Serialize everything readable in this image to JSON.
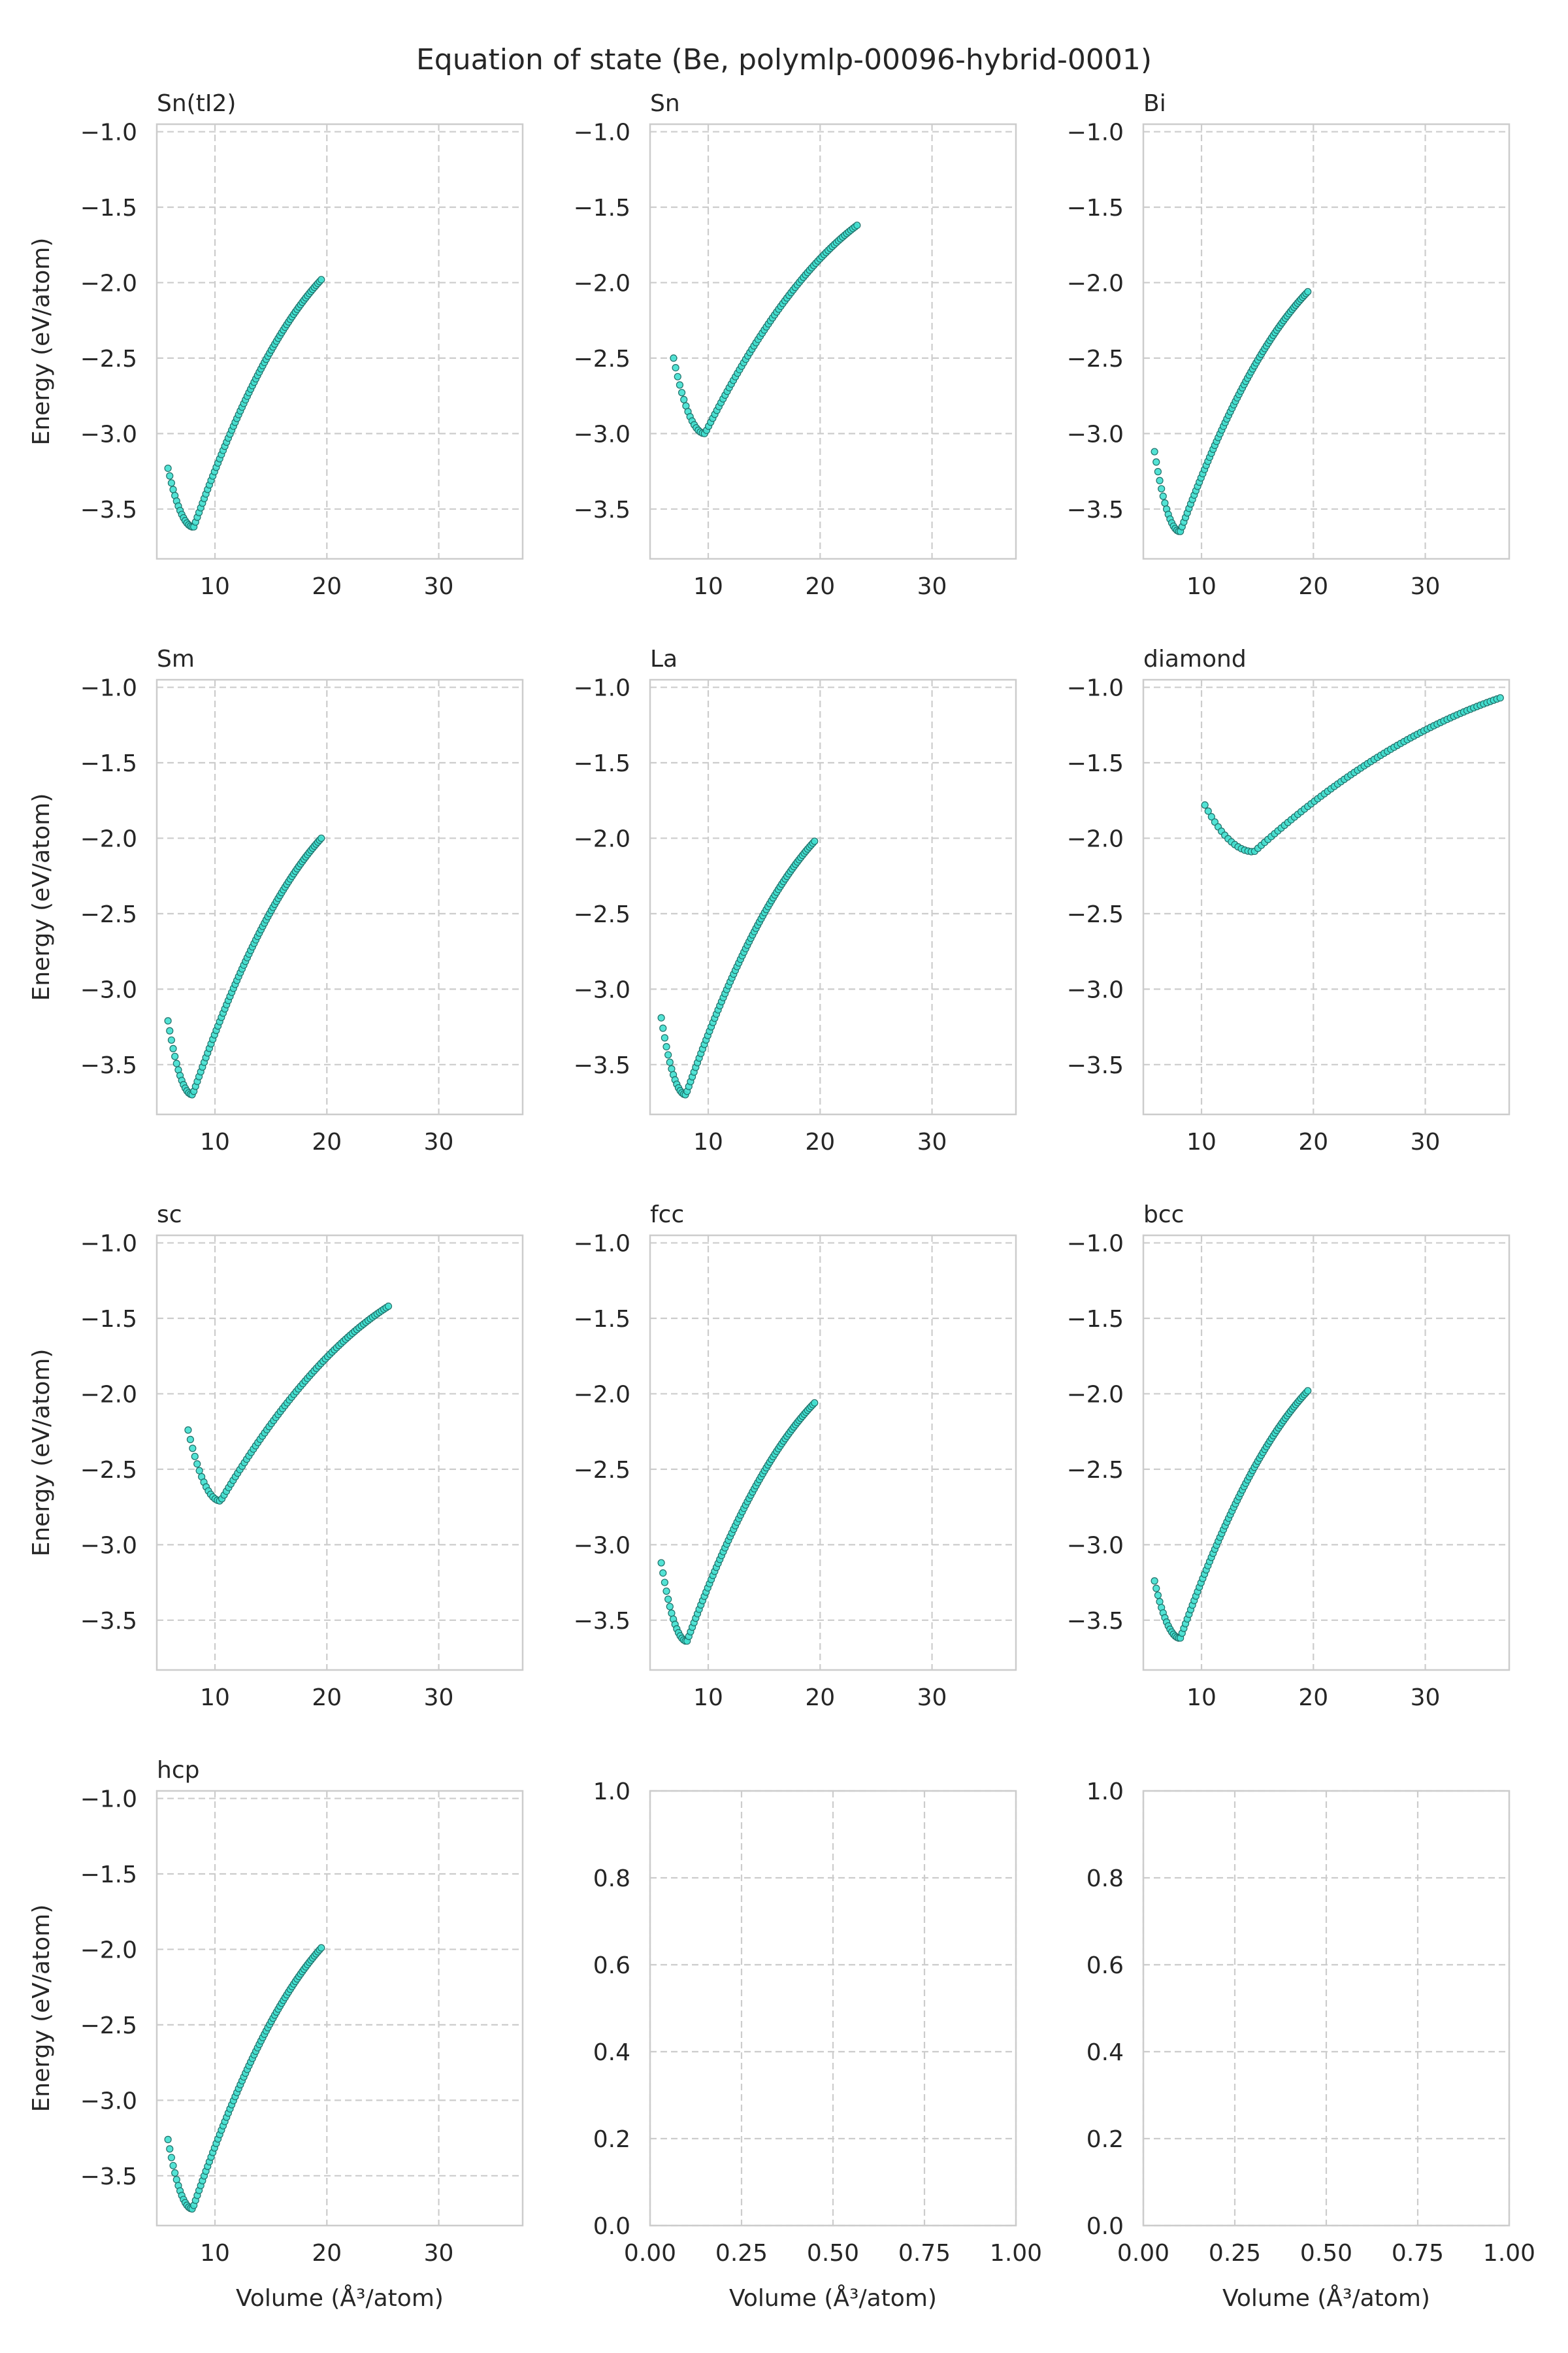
{
  "figure": {
    "title": "Equation of state (Be, polymlp-00096-hybrid-0001)",
    "ylabel": "Energy (eV/atom)",
    "xlabel": "Volume (Å³/atom)"
  },
  "colors": {
    "marker_fill": "#40E0D0",
    "marker_edge": "#1f6f68",
    "grid": "#cccccc",
    "frame": "#cccccc",
    "text": "#262626"
  },
  "chart_data": [
    {
      "type": "scatter",
      "title": "Sn(tI2)",
      "xlim": [
        4.8,
        37.5
      ],
      "ylim": [
        -3.83,
        -0.95
      ],
      "xticks": [
        "10",
        "20",
        "30"
      ],
      "xtick_values": [
        10,
        20,
        30
      ],
      "yticks": [
        "−1.0",
        "−1.5",
        "−2.0",
        "−2.5",
        "−3.0",
        "−3.5"
      ],
      "ytick_values": [
        -1.0,
        -1.5,
        -2.0,
        -2.5,
        -3.0,
        -3.5
      ],
      "ylabel": "Energy (eV/atom)",
      "xlabel": "",
      "grid": true,
      "curve": {
        "x_start": 5.8,
        "x_end": 19.5,
        "x_min": 8.1,
        "e_min": -3.62,
        "e_left": -3.23,
        "e_right": -1.98,
        "n": 90
      }
    },
    {
      "type": "scatter",
      "title": "Sn",
      "xlim": [
        4.8,
        37.5
      ],
      "ylim": [
        -3.83,
        -0.95
      ],
      "xticks": [
        "10",
        "20",
        "30"
      ],
      "xtick_values": [
        10,
        20,
        30
      ],
      "yticks": [
        "−1.0",
        "−1.5",
        "−2.0",
        "−2.5",
        "−3.0",
        "−3.5"
      ],
      "ytick_values": [
        -1.0,
        -1.5,
        -2.0,
        -2.5,
        -3.0,
        -3.5
      ],
      "ylabel": "",
      "xlabel": "",
      "grid": true,
      "curve": {
        "x_start": 6.9,
        "x_end": 23.3,
        "x_min": 9.7,
        "e_min": -3.0,
        "e_left": -2.5,
        "e_right": -1.62,
        "n": 90
      }
    },
    {
      "type": "scatter",
      "title": "Bi",
      "xlim": [
        4.8,
        37.5
      ],
      "ylim": [
        -3.83,
        -0.95
      ],
      "xticks": [
        "10",
        "20",
        "30"
      ],
      "xtick_values": [
        10,
        20,
        30
      ],
      "yticks": [
        "−1.0",
        "−1.5",
        "−2.0",
        "−2.5",
        "−3.0",
        "−3.5"
      ],
      "ytick_values": [
        -1.0,
        -1.5,
        -2.0,
        -2.5,
        -3.0,
        -3.5
      ],
      "ylabel": "",
      "xlabel": "",
      "grid": true,
      "curve": {
        "x_start": 5.8,
        "x_end": 19.5,
        "x_min": 8.1,
        "e_min": -3.65,
        "e_left": -3.12,
        "e_right": -2.06,
        "n": 90
      }
    },
    {
      "type": "scatter",
      "title": "Sm",
      "xlim": [
        4.8,
        37.5
      ],
      "ylim": [
        -3.83,
        -0.95
      ],
      "xticks": [
        "10",
        "20",
        "30"
      ],
      "xtick_values": [
        10,
        20,
        30
      ],
      "yticks": [
        "−1.0",
        "−1.5",
        "−2.0",
        "−2.5",
        "−3.0",
        "−3.5"
      ],
      "ytick_values": [
        -1.0,
        -1.5,
        -2.0,
        -2.5,
        -3.0,
        -3.5
      ],
      "ylabel": "Energy (eV/atom)",
      "xlabel": "",
      "grid": true,
      "curve": {
        "x_start": 5.8,
        "x_end": 19.5,
        "x_min": 8.0,
        "e_min": -3.7,
        "e_left": -3.21,
        "e_right": -2.0,
        "n": 90
      }
    },
    {
      "type": "scatter",
      "title": "La",
      "xlim": [
        4.8,
        37.5
      ],
      "ylim": [
        -3.83,
        -0.95
      ],
      "xticks": [
        "10",
        "20",
        "30"
      ],
      "xtick_values": [
        10,
        20,
        30
      ],
      "yticks": [
        "−1.0",
        "−1.5",
        "−2.0",
        "−2.5",
        "−3.0",
        "−3.5"
      ],
      "ytick_values": [
        -1.0,
        -1.5,
        -2.0,
        -2.5,
        -3.0,
        -3.5
      ],
      "ylabel": "",
      "xlabel": "",
      "grid": true,
      "curve": {
        "x_start": 5.8,
        "x_end": 19.5,
        "x_min": 8.0,
        "e_min": -3.7,
        "e_left": -3.19,
        "e_right": -2.02,
        "n": 90
      }
    },
    {
      "type": "scatter",
      "title": "diamond",
      "xlim": [
        4.8,
        37.5
      ],
      "ylim": [
        -3.83,
        -0.95
      ],
      "xticks": [
        "10",
        "20",
        "30"
      ],
      "xtick_values": [
        10,
        20,
        30
      ],
      "yticks": [
        "−1.0",
        "−1.5",
        "−2.0",
        "−2.5",
        "−3.0",
        "−3.5"
      ],
      "ytick_values": [
        -1.0,
        -1.5,
        -2.0,
        -2.5,
        -3.0,
        -3.5
      ],
      "ylabel": "",
      "xlabel": "",
      "grid": true,
      "curve": {
        "x_start": 10.3,
        "x_end": 36.7,
        "x_min": 14.7,
        "e_min": -2.09,
        "e_left": -1.78,
        "e_right": -1.07,
        "n": 90
      }
    },
    {
      "type": "scatter",
      "title": "sc",
      "xlim": [
        4.8,
        37.5
      ],
      "ylim": [
        -3.83,
        -0.95
      ],
      "xticks": [
        "10",
        "20",
        "30"
      ],
      "xtick_values": [
        10,
        20,
        30
      ],
      "yticks": [
        "−1.0",
        "−1.5",
        "−2.0",
        "−2.5",
        "−3.0",
        "−3.5"
      ],
      "ytick_values": [
        -1.0,
        -1.5,
        -2.0,
        -2.5,
        -3.0,
        -3.5
      ],
      "ylabel": "Energy (eV/atom)",
      "xlabel": "",
      "grid": true,
      "curve": {
        "x_start": 7.6,
        "x_end": 25.5,
        "x_min": 10.5,
        "e_min": -2.71,
        "e_left": -2.24,
        "e_right": -1.42,
        "n": 90
      }
    },
    {
      "type": "scatter",
      "title": "fcc",
      "xlim": [
        4.8,
        37.5
      ],
      "ylim": [
        -3.83,
        -0.95
      ],
      "xticks": [
        "10",
        "20",
        "30"
      ],
      "xtick_values": [
        10,
        20,
        30
      ],
      "yticks": [
        "−1.0",
        "−1.5",
        "−2.0",
        "−2.5",
        "−3.0",
        "−3.5"
      ],
      "ytick_values": [
        -1.0,
        -1.5,
        -2.0,
        -2.5,
        -3.0,
        -3.5
      ],
      "ylabel": "",
      "xlabel": "",
      "grid": true,
      "curve": {
        "x_start": 5.8,
        "x_end": 19.5,
        "x_min": 8.1,
        "e_min": -3.64,
        "e_left": -3.12,
        "e_right": -2.06,
        "n": 90
      }
    },
    {
      "type": "scatter",
      "title": "bcc",
      "xlim": [
        4.8,
        37.5
      ],
      "ylim": [
        -3.83,
        -0.95
      ],
      "xticks": [
        "10",
        "20",
        "30"
      ],
      "xtick_values": [
        10,
        20,
        30
      ],
      "yticks": [
        "−1.0",
        "−1.5",
        "−2.0",
        "−2.5",
        "−3.0",
        "−3.5"
      ],
      "ytick_values": [
        -1.0,
        -1.5,
        -2.0,
        -2.5,
        -3.0,
        -3.5
      ],
      "ylabel": "",
      "xlabel": "",
      "grid": true,
      "curve": {
        "x_start": 5.8,
        "x_end": 19.5,
        "x_min": 8.1,
        "e_min": -3.62,
        "e_left": -3.24,
        "e_right": -1.98,
        "n": 90
      }
    },
    {
      "type": "scatter",
      "title": "hcp",
      "xlim": [
        4.8,
        37.5
      ],
      "ylim": [
        -3.83,
        -0.95
      ],
      "xticks": [
        "10",
        "20",
        "30"
      ],
      "xtick_values": [
        10,
        20,
        30
      ],
      "yticks": [
        "−1.0",
        "−1.5",
        "−2.0",
        "−2.5",
        "−3.0",
        "−3.5"
      ],
      "ytick_values": [
        -1.0,
        -1.5,
        -2.0,
        -2.5,
        -3.0,
        -3.5
      ],
      "ylabel": "Energy (eV/atom)",
      "xlabel": "Volume (Å³/atom)",
      "grid": true,
      "curve": {
        "x_start": 5.8,
        "x_end": 19.5,
        "x_min": 8.0,
        "e_min": -3.72,
        "e_left": -3.26,
        "e_right": -1.99,
        "n": 90
      }
    },
    {
      "type": "scatter",
      "title": "",
      "xlim": [
        0,
        1
      ],
      "ylim": [
        0,
        1
      ],
      "xticks": [
        "0.00",
        "0.25",
        "0.50",
        "0.75",
        "1.00"
      ],
      "xtick_values": [
        0,
        0.25,
        0.5,
        0.75,
        1.0
      ],
      "yticks": [
        "0.0",
        "0.2",
        "0.4",
        "0.6",
        "0.8",
        "1.0"
      ],
      "ytick_values": [
        0,
        0.2,
        0.4,
        0.6,
        0.8,
        1.0
      ],
      "ylabel": "",
      "xlabel": "Volume (Å³/atom)",
      "grid": true,
      "curve": null
    },
    {
      "type": "scatter",
      "title": "",
      "xlim": [
        0,
        1
      ],
      "ylim": [
        0,
        1
      ],
      "xticks": [
        "0.00",
        "0.25",
        "0.50",
        "0.75",
        "1.00"
      ],
      "xtick_values": [
        0,
        0.25,
        0.5,
        0.75,
        1.0
      ],
      "yticks": [
        "0.0",
        "0.2",
        "0.4",
        "0.6",
        "0.8",
        "1.0"
      ],
      "ytick_values": [
        0,
        0.2,
        0.4,
        0.6,
        0.8,
        1.0
      ],
      "ylabel": "",
      "xlabel": "Volume (Å³/atom)",
      "grid": true,
      "curve": null
    }
  ]
}
